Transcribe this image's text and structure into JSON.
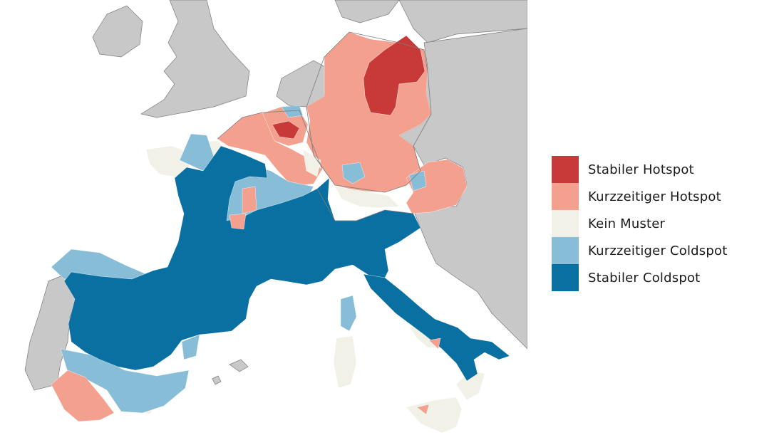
{
  "legend": {
    "items": [
      {
        "key": "stable_hot",
        "label": "Stabiler Hotspot",
        "color": "#c83a3a"
      },
      {
        "key": "short_hot",
        "label": "Kurzzeitiger Hotspot",
        "color": "#f4a08f"
      },
      {
        "key": "none",
        "label": "Kein Muster",
        "color": "#f1f1e7"
      },
      {
        "key": "short_cold",
        "label": "Kurzzeitiger Coldspot",
        "color": "#88bdd8"
      },
      {
        "key": "stable_cold",
        "label": "Stabiler Coldspot",
        "color": "#0a6fa1"
      }
    ]
  },
  "map": {
    "background_land_color": "#c8c8c8",
    "sea_color": "#ffffff",
    "border_color": "#7a7a7a"
  }
}
